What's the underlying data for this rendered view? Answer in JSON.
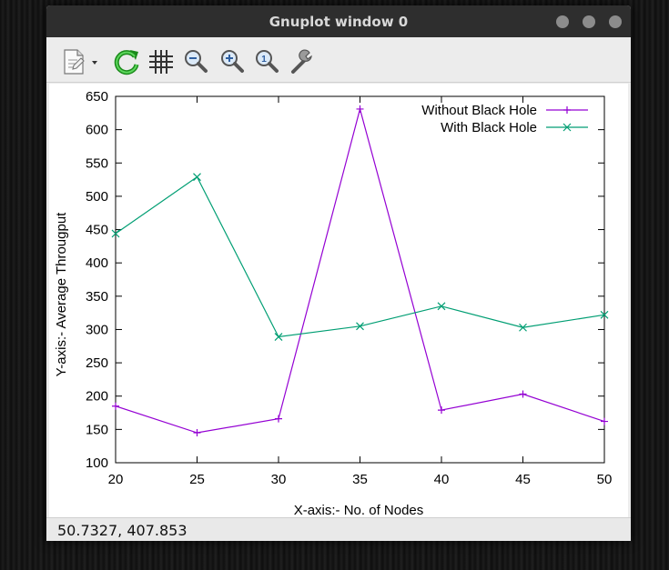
{
  "window": {
    "title": "Gnuplot window 0",
    "buttons": [
      "minimize-button",
      "maximize-button",
      "close-button"
    ]
  },
  "toolbar": {
    "items": [
      {
        "name": "export-icon",
        "tooltip": "Export"
      },
      {
        "name": "replot-icon",
        "tooltip": "Replot"
      },
      {
        "name": "grid-icon",
        "tooltip": "Show grid"
      },
      {
        "name": "zoom-out-icon",
        "tooltip": "Previous zoom"
      },
      {
        "name": "zoom-in-icon",
        "tooltip": "Next zoom"
      },
      {
        "name": "zoom-reset-icon",
        "tooltip": "Autoscale"
      },
      {
        "name": "settings-icon",
        "tooltip": "Settings"
      }
    ]
  },
  "status": {
    "coordinates": "50.7327,  407.853"
  },
  "chart_data": {
    "type": "line",
    "title": "",
    "xlabel": "X-axis:- No. of Nodes",
    "ylabel": "Y-axis:- Average Througput",
    "xlim": [
      20,
      50
    ],
    "ylim": [
      100,
      650
    ],
    "xticks": [
      20,
      25,
      30,
      35,
      40,
      45,
      50
    ],
    "yticks": [
      100,
      150,
      200,
      250,
      300,
      350,
      400,
      450,
      500,
      550,
      600,
      650
    ],
    "grid": false,
    "legend_position": "top-right",
    "x": [
      20,
      25,
      30,
      35,
      40,
      45,
      50
    ],
    "series": [
      {
        "name": "Without Black Hole",
        "color": "#9400d3",
        "marker": "plus",
        "values": [
          185,
          145,
          166,
          631,
          179,
          203,
          162
        ]
      },
      {
        "name": "With Black Hole",
        "color": "#009e73",
        "marker": "cross",
        "values": [
          444,
          529,
          289,
          305,
          335,
          303,
          322
        ]
      }
    ]
  }
}
